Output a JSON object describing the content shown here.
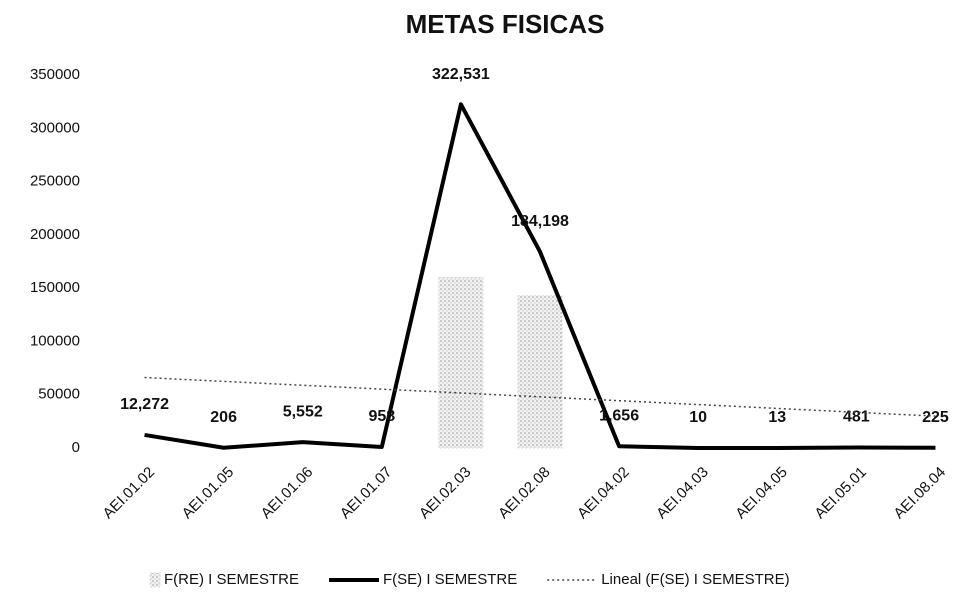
{
  "chart_data": {
    "type": "combo",
    "title": "METAS FISICAS",
    "categories": [
      "AEI.01.02",
      "AEI.01.05",
      "AEI.01.06",
      "AEI.01.07",
      "AEI.02.03",
      "AEI.02.08",
      "AEI.04.02",
      "AEI.04.03",
      "AEI.04.05",
      "AEI.05.01",
      "AEI.08.04"
    ],
    "series": [
      {
        "name": "F(RE) I SEMESTRE",
        "type": "bar",
        "color": "#d9d9d9",
        "values": [
          0,
          0,
          0,
          0,
          160000,
          143000,
          0,
          0,
          0,
          0,
          0
        ]
      },
      {
        "name": "F(SE) I SEMESTRE",
        "type": "line",
        "color": "#000000",
        "values": [
          12272,
          206,
          5552,
          958,
          322531,
          184198,
          1656,
          10,
          13,
          481,
          225
        ],
        "value_labels": [
          "12,272",
          "206",
          "5,552",
          "958",
          "322,531",
          "184,198",
          "1,656",
          "10",
          "13",
          "481",
          "225"
        ]
      }
    ],
    "trendline": {
      "name": "Lineal (F(SE) I SEMESTRE)",
      "series": 1,
      "color": "#444444"
    },
    "ylim": [
      0,
      350000
    ],
    "yticks": [
      0,
      50000,
      100000,
      150000,
      200000,
      250000,
      300000,
      350000
    ],
    "grid": false,
    "legend": "bottom"
  }
}
